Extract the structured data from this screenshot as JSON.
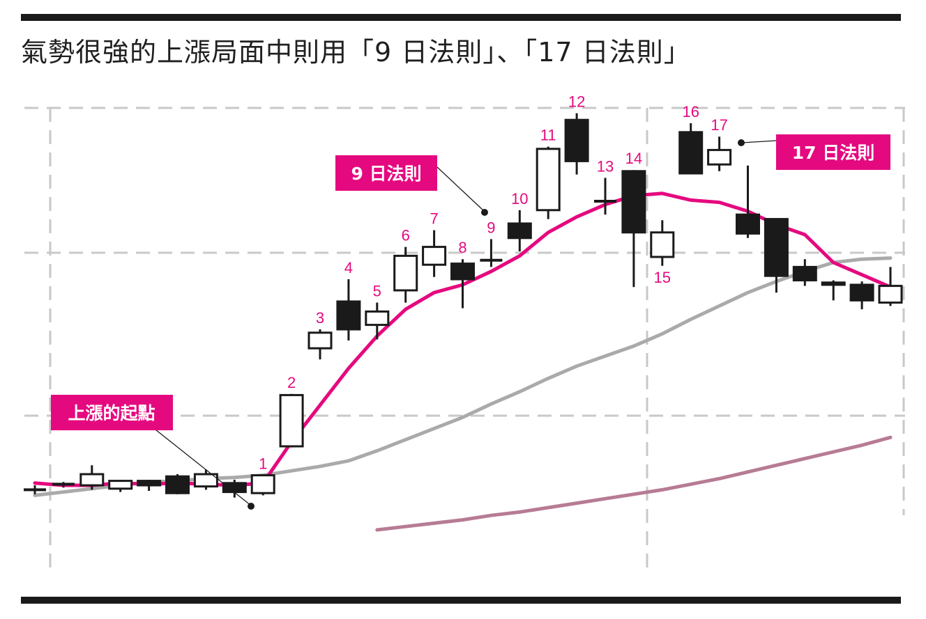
{
  "title": "氣勢很強的上漲局面中則用「9 日法則」、「17 日法則」",
  "colors": {
    "accent": "#e5097f",
    "ma_short": "#e5097f",
    "ma_mid": "#aaaaaa",
    "ma_long": "#b77b94",
    "candle": "#1a1a1a",
    "grid": "#c8c8c8"
  },
  "annotations": {
    "start": "上漲的起點",
    "rule9": "9 日法則",
    "rule17": "17 日法則"
  },
  "chart_data": {
    "type": "candlestick",
    "title": "氣勢很強的上漲局面中則用「9 日法則」、「17 日法則」",
    "xlabel": "",
    "ylabel": "",
    "grid": true,
    "y_axis": {
      "tick_labels": false
    },
    "candles": [
      {
        "label": "",
        "open": 7.6,
        "close": 7.6,
        "high": 8.0,
        "low": 7.2
      },
      {
        "label": "",
        "open": 8.1,
        "close": 8.0,
        "high": 8.3,
        "low": 7.8
      },
      {
        "label": "",
        "open": 8.0,
        "close": 9.0,
        "high": 9.8,
        "low": 7.6
      },
      {
        "label": "",
        "open": 7.7,
        "close": 8.4,
        "high": 8.5,
        "low": 7.4
      },
      {
        "label": "",
        "open": 8.4,
        "close": 8.0,
        "high": 8.5,
        "low": 7.5
      },
      {
        "label": "",
        "open": 8.8,
        "close": 7.3,
        "high": 9.0,
        "low": 7.2
      },
      {
        "label": "",
        "open": 7.9,
        "close": 9.0,
        "high": 9.4,
        "low": 7.6
      },
      {
        "label": "",
        "open": 8.2,
        "close": 7.4,
        "high": 8.5,
        "low": 6.9
      },
      {
        "label": "1",
        "open": 7.3,
        "close": 8.9,
        "high": 8.9,
        "low": 7.1
      },
      {
        "label": "2",
        "open": 11.5,
        "close": 16.1,
        "high": 16.2,
        "low": 11.4
      },
      {
        "label": "3",
        "open": 20.3,
        "close": 21.7,
        "high": 22.0,
        "low": 19.3
      },
      {
        "label": "4",
        "open": 24.5,
        "close": 22.0,
        "high": 26.5,
        "low": 21.0
      },
      {
        "label": "5",
        "open": 22.4,
        "close": 23.6,
        "high": 24.4,
        "low": 21.1
      },
      {
        "label": "6",
        "open": 25.5,
        "close": 28.6,
        "high": 29.4,
        "low": 24.4
      },
      {
        "label": "7",
        "open": 27.8,
        "close": 29.4,
        "high": 30.9,
        "low": 26.7
      },
      {
        "label": "8",
        "open": 27.9,
        "close": 26.5,
        "high": 28.3,
        "low": 23.9
      },
      {
        "label": "9",
        "open": 28.2,
        "close": 28.2,
        "high": 30.1,
        "low": 27.6
      },
      {
        "label": "10",
        "open": 31.5,
        "close": 30.2,
        "high": 32.7,
        "low": 29.0
      },
      {
        "label": "11",
        "open": 32.7,
        "close": 38.2,
        "high": 38.4,
        "low": 31.9
      },
      {
        "label": "12",
        "open": 40.8,
        "close": 37.1,
        "high": 41.4,
        "low": 35.9
      },
      {
        "label": "13",
        "open": 33.5,
        "close": 33.5,
        "high": 35.6,
        "low": 32.3
      },
      {
        "label": "14",
        "open": 36.2,
        "close": 30.7,
        "high": 36.3,
        "low": 25.8
      },
      {
        "label": "15",
        "open": 28.5,
        "close": 30.7,
        "high": 31.8,
        "low": 27.7
      },
      {
        "label": "16",
        "open": 39.7,
        "close": 36.0,
        "high": 40.5,
        "low": 36.0
      },
      {
        "label": "17",
        "open": 36.8,
        "close": 38.1,
        "high": 39.3,
        "low": 36.2
      },
      {
        "label": "",
        "open": 32.3,
        "close": 30.6,
        "high": 36.7,
        "low": 30.2
      },
      {
        "label": "",
        "open": 31.9,
        "close": 26.8,
        "high": 31.9,
        "low": 25.3
      },
      {
        "label": "",
        "open": 27.6,
        "close": 26.4,
        "high": 28.3,
        "low": 25.9
      },
      {
        "label": "",
        "open": 26.2,
        "close": 26.0,
        "high": 26.4,
        "low": 24.6
      },
      {
        "label": "",
        "open": 26.0,
        "close": 24.6,
        "high": 26.3,
        "low": 23.8
      },
      {
        "label": "",
        "open": 24.4,
        "close": 25.9,
        "high": 27.6,
        "low": 24.1
      }
    ],
    "series": [
      {
        "values": [
          8.2,
          8.0,
          8.0,
          8.2,
          8.1,
          8.2,
          8.1,
          8.0,
          8.2,
          11.9,
          15.2,
          18.5,
          21.4,
          23.8,
          25.3,
          26.0,
          27.2,
          28.6,
          30.7,
          32.1,
          33.2,
          34.0,
          34.2,
          33.6,
          33.4,
          32.6,
          31.4,
          30.5,
          28.0,
          26.9,
          25.8
        ]
      },
      {
        "values": [
          7.1,
          7.4,
          7.7,
          8.0,
          8.3,
          8.4,
          8.6,
          8.7,
          8.9,
          9.3,
          9.7,
          10.2,
          11.1,
          12.1,
          13.1,
          14.1,
          15.3,
          16.4,
          17.6,
          18.7,
          19.6,
          20.5,
          21.6,
          22.9,
          24.1,
          25.3,
          26.3,
          27.2,
          28.0,
          28.3,
          28.4
        ]
      },
      {
        "values": [
          null,
          null,
          null,
          null,
          null,
          null,
          null,
          null,
          null,
          null,
          null,
          null,
          4.0,
          4.3,
          4.6,
          4.9,
          5.3,
          5.6,
          6.0,
          6.4,
          6.8,
          7.2,
          7.6,
          8.1,
          8.6,
          9.2,
          9.8,
          10.4,
          11.0,
          11.6,
          12.3
        ]
      }
    ]
  }
}
